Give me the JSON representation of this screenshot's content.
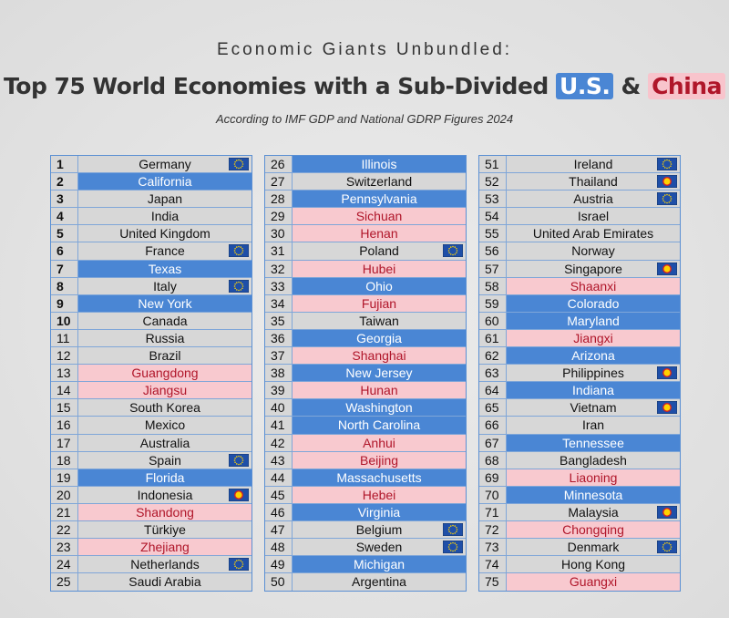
{
  "header": {
    "title_top": "Economic Giants Unbundled:",
    "title_main": "Top 75 World Economies with a Sub-Divided",
    "title_us": "U.S.",
    "title_amp": "&",
    "title_china": "China",
    "subtitle": "According to IMF GDP and National GDRP Figures 2024"
  },
  "table": {
    "columns": [
      [
        {
          "rank": 1,
          "name": "Germany",
          "group": "other",
          "badge": "eu"
        },
        {
          "rank": 2,
          "name": "California",
          "group": "us",
          "badge": "none"
        },
        {
          "rank": 3,
          "name": "Japan",
          "group": "other",
          "badge": "none"
        },
        {
          "rank": 4,
          "name": "India",
          "group": "other",
          "badge": "none"
        },
        {
          "rank": 5,
          "name": "United Kingdom",
          "group": "other",
          "badge": "none"
        },
        {
          "rank": 6,
          "name": "France",
          "group": "other",
          "badge": "eu"
        },
        {
          "rank": 7,
          "name": "Texas",
          "group": "us",
          "badge": "none"
        },
        {
          "rank": 8,
          "name": "Italy",
          "group": "other",
          "badge": "eu"
        },
        {
          "rank": 9,
          "name": "New York",
          "group": "us",
          "badge": "none"
        },
        {
          "rank": 10,
          "name": "Canada",
          "group": "other",
          "badge": "none"
        },
        {
          "rank": 11,
          "name": "Russia",
          "group": "other",
          "badge": "none"
        },
        {
          "rank": 12,
          "name": "Brazil",
          "group": "other",
          "badge": "none"
        },
        {
          "rank": 13,
          "name": "Guangdong",
          "group": "china",
          "badge": "none"
        },
        {
          "rank": 14,
          "name": "Jiangsu",
          "group": "china",
          "badge": "none"
        },
        {
          "rank": 15,
          "name": "South Korea",
          "group": "other",
          "badge": "none"
        },
        {
          "rank": 16,
          "name": "Mexico",
          "group": "other",
          "badge": "none"
        },
        {
          "rank": 17,
          "name": "Australia",
          "group": "other",
          "badge": "none"
        },
        {
          "rank": 18,
          "name": "Spain",
          "group": "other",
          "badge": "eu"
        },
        {
          "rank": 19,
          "name": "Florida",
          "group": "us",
          "badge": "none"
        },
        {
          "rank": 20,
          "name": "Indonesia",
          "group": "other",
          "badge": "asean"
        },
        {
          "rank": 21,
          "name": "Shandong",
          "group": "china",
          "badge": "none"
        },
        {
          "rank": 22,
          "name": "Türkiye",
          "group": "other",
          "badge": "none"
        },
        {
          "rank": 23,
          "name": "Zhejiang",
          "group": "china",
          "badge": "none"
        },
        {
          "rank": 24,
          "name": "Netherlands",
          "group": "other",
          "badge": "eu"
        },
        {
          "rank": 25,
          "name": "Saudi Arabia",
          "group": "other",
          "badge": "none"
        }
      ],
      [
        {
          "rank": 26,
          "name": "Illinois",
          "group": "us",
          "badge": "none"
        },
        {
          "rank": 27,
          "name": "Switzerland",
          "group": "other",
          "badge": "none"
        },
        {
          "rank": 28,
          "name": "Pennsylvania",
          "group": "us",
          "badge": "none"
        },
        {
          "rank": 29,
          "name": "Sichuan",
          "group": "china",
          "badge": "none"
        },
        {
          "rank": 30,
          "name": "Henan",
          "group": "china",
          "badge": "none"
        },
        {
          "rank": 31,
          "name": "Poland",
          "group": "other",
          "badge": "eu"
        },
        {
          "rank": 32,
          "name": "Hubei",
          "group": "china",
          "badge": "none"
        },
        {
          "rank": 33,
          "name": "Ohio",
          "group": "us",
          "badge": "none"
        },
        {
          "rank": 34,
          "name": "Fujian",
          "group": "china",
          "badge": "none"
        },
        {
          "rank": 35,
          "name": "Taiwan",
          "group": "other",
          "badge": "none"
        },
        {
          "rank": 36,
          "name": "Georgia",
          "group": "us",
          "badge": "none"
        },
        {
          "rank": 37,
          "name": "Shanghai",
          "group": "china",
          "badge": "none"
        },
        {
          "rank": 38,
          "name": "New Jersey",
          "group": "us",
          "badge": "none"
        },
        {
          "rank": 39,
          "name": "Hunan",
          "group": "china",
          "badge": "none"
        },
        {
          "rank": 40,
          "name": "Washington",
          "group": "us",
          "badge": "none"
        },
        {
          "rank": 41,
          "name": "North Carolina",
          "group": "us",
          "badge": "none"
        },
        {
          "rank": 42,
          "name": "Anhui",
          "group": "china",
          "badge": "none"
        },
        {
          "rank": 43,
          "name": "Beijing",
          "group": "china",
          "badge": "none"
        },
        {
          "rank": 44,
          "name": "Massachusetts",
          "group": "us",
          "badge": "none"
        },
        {
          "rank": 45,
          "name": "Hebei",
          "group": "china",
          "badge": "none"
        },
        {
          "rank": 46,
          "name": "Virginia",
          "group": "us",
          "badge": "none"
        },
        {
          "rank": 47,
          "name": "Belgium",
          "group": "other",
          "badge": "eu"
        },
        {
          "rank": 48,
          "name": "Sweden",
          "group": "other",
          "badge": "eu"
        },
        {
          "rank": 49,
          "name": "Michigan",
          "group": "us",
          "badge": "none"
        },
        {
          "rank": 50,
          "name": "Argentina",
          "group": "other",
          "badge": "none"
        }
      ],
      [
        {
          "rank": 51,
          "name": "Ireland",
          "group": "other",
          "badge": "eu"
        },
        {
          "rank": 52,
          "name": "Thailand",
          "group": "other",
          "badge": "asean"
        },
        {
          "rank": 53,
          "name": "Austria",
          "group": "other",
          "badge": "eu"
        },
        {
          "rank": 54,
          "name": "Israel",
          "group": "other",
          "badge": "none"
        },
        {
          "rank": 55,
          "name": "United Arab Emirates",
          "group": "other",
          "badge": "none"
        },
        {
          "rank": 56,
          "name": "Norway",
          "group": "other",
          "badge": "none"
        },
        {
          "rank": 57,
          "name": "Singapore",
          "group": "other",
          "badge": "asean"
        },
        {
          "rank": 58,
          "name": "Shaanxi",
          "group": "china",
          "badge": "none"
        },
        {
          "rank": 59,
          "name": "Colorado",
          "group": "us",
          "badge": "none"
        },
        {
          "rank": 60,
          "name": "Maryland",
          "group": "us",
          "badge": "none"
        },
        {
          "rank": 61,
          "name": "Jiangxi",
          "group": "china",
          "badge": "none"
        },
        {
          "rank": 62,
          "name": "Arizona",
          "group": "us",
          "badge": "none"
        },
        {
          "rank": 63,
          "name": "Philippines",
          "group": "other",
          "badge": "asean"
        },
        {
          "rank": 64,
          "name": "Indiana",
          "group": "us",
          "badge": "none"
        },
        {
          "rank": 65,
          "name": "Vietnam",
          "group": "other",
          "badge": "asean"
        },
        {
          "rank": 66,
          "name": "Iran",
          "group": "other",
          "badge": "none"
        },
        {
          "rank": 67,
          "name": "Tennessee",
          "group": "us",
          "badge": "none"
        },
        {
          "rank": 68,
          "name": "Bangladesh",
          "group": "other",
          "badge": "none"
        },
        {
          "rank": 69,
          "name": "Liaoning",
          "group": "china",
          "badge": "none"
        },
        {
          "rank": 70,
          "name": "Minnesota",
          "group": "us",
          "badge": "none"
        },
        {
          "rank": 71,
          "name": "Malaysia",
          "group": "other",
          "badge": "asean"
        },
        {
          "rank": 72,
          "name": "Chongqing",
          "group": "china",
          "badge": "none"
        },
        {
          "rank": 73,
          "name": "Denmark",
          "group": "other",
          "badge": "eu"
        },
        {
          "rank": 74,
          "name": "Hong Kong",
          "group": "other",
          "badge": "none"
        },
        {
          "rank": 75,
          "name": "Guangxi",
          "group": "china",
          "badge": "none"
        }
      ]
    ]
  }
}
